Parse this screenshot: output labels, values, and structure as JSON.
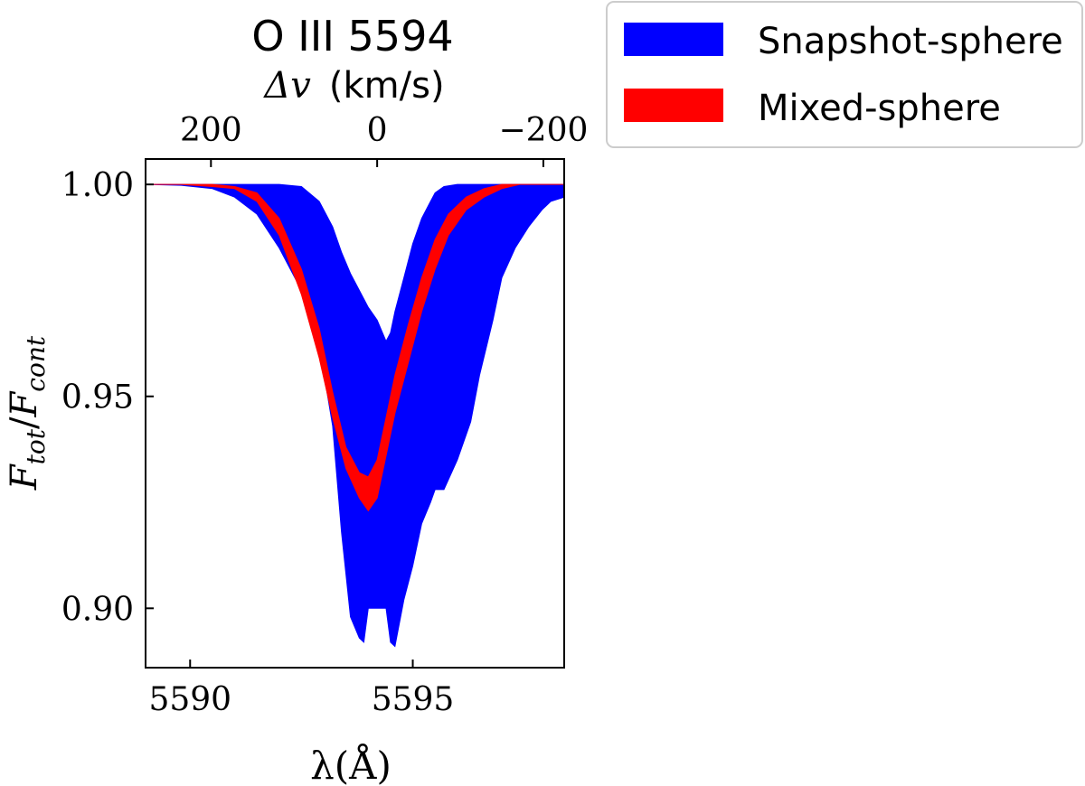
{
  "chart_data": {
    "type": "area",
    "title": "O III 5594",
    "xlabel": "λ(Å)",
    "ylabel_main": "F",
    "ylabel_num_sub": "tot",
    "ylabel_den_sub": "cont",
    "top_axis_label_symbol": "Δv",
    "top_axis_label_units": "(km/s)",
    "xlim": [
      5589.0,
      5598.4
    ],
    "ylim": [
      0.886,
      1.006
    ],
    "xticks": [
      5590,
      5595
    ],
    "xtick_labels": [
      "5590",
      "5595"
    ],
    "yticks": [
      0.9,
      0.95,
      1.0
    ],
    "ytick_labels": [
      "0.90",
      "0.95",
      "1.00"
    ],
    "top_ticks_kms": [
      200,
      0,
      -200
    ],
    "top_tick_labels": [
      "200",
      "0",
      "−200"
    ],
    "rest_wavelength": 5594.2,
    "legend_position": "outside-top-right",
    "series": [
      {
        "name": "Snapshot-sphere",
        "color": "#0000ff",
        "x": [
          5589.0,
          5589.8,
          5590.5,
          5591.0,
          5591.5,
          5592.0,
          5592.5,
          5592.9,
          5593.2,
          5593.4,
          5593.6,
          5593.8,
          5593.9,
          5594.0,
          5594.2,
          5594.4,
          5594.5,
          5594.6,
          5594.8,
          5595.0,
          5595.2,
          5595.4,
          5595.5,
          5595.7,
          5596.0,
          5596.3,
          5596.5,
          5596.8,
          5597.0,
          5597.3,
          5597.6,
          5597.9,
          5598.1,
          5598.4
        ],
        "upper": [
          1.0,
          1.0,
          1.0,
          1.0,
          1.0,
          1.0,
          0.9995,
          0.996,
          0.99,
          0.984,
          0.979,
          0.975,
          0.973,
          0.971,
          0.968,
          0.963,
          0.965,
          0.97,
          0.978,
          0.986,
          0.992,
          0.996,
          0.998,
          0.9995,
          1.0,
          1.0,
          1.0,
          1.0,
          1.0,
          1.0,
          1.0,
          1.0,
          1.0,
          1.0
        ],
        "lower": [
          1.0,
          0.9998,
          0.999,
          0.997,
          0.993,
          0.985,
          0.975,
          0.962,
          0.943,
          0.918,
          0.898,
          0.893,
          0.892,
          0.9,
          0.9,
          0.9,
          0.892,
          0.891,
          0.902,
          0.91,
          0.92,
          0.925,
          0.928,
          0.928,
          0.935,
          0.944,
          0.955,
          0.968,
          0.978,
          0.985,
          0.99,
          0.994,
          0.996,
          0.997
        ]
      },
      {
        "name": "Mixed-sphere",
        "color": "#ff0000",
        "x": [
          5589.0,
          5589.8,
          5590.5,
          5591.0,
          5591.5,
          5592.0,
          5592.5,
          5592.9,
          5593.2,
          5593.5,
          5593.8,
          5594.0,
          5594.2,
          5594.4,
          5594.6,
          5594.9,
          5595.2,
          5595.5,
          5595.8,
          5596.2,
          5596.6,
          5597.0,
          5597.4,
          5597.8,
          5598.4
        ],
        "upper": [
          1.0,
          1.0,
          1.0,
          0.9995,
          0.998,
          0.992,
          0.98,
          0.966,
          0.951,
          0.938,
          0.932,
          0.931,
          0.935,
          0.945,
          0.955,
          0.967,
          0.978,
          0.987,
          0.993,
          0.997,
          0.999,
          1.0,
          1.0,
          1.0,
          1.0
        ],
        "lower": [
          1.0,
          1.0,
          0.9995,
          0.999,
          0.996,
          0.988,
          0.974,
          0.959,
          0.945,
          0.933,
          0.926,
          0.923,
          0.926,
          0.936,
          0.946,
          0.958,
          0.97,
          0.98,
          0.988,
          0.994,
          0.997,
          0.999,
          1.0,
          1.0,
          1.0
        ]
      }
    ]
  }
}
